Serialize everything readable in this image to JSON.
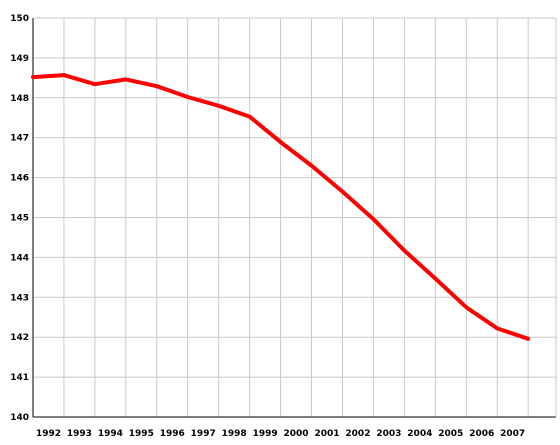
{
  "chart_data": {
    "type": "line",
    "title": "",
    "xlabel": "",
    "ylabel": "",
    "x": [
      1991,
      1992,
      1993,
      1994,
      1995,
      1996,
      1997,
      1998,
      1999,
      2000,
      2001,
      2002,
      2003,
      2004,
      2005,
      2006,
      2007
    ],
    "x_tick_labels": [
      "1992",
      "1993",
      "1994",
      "1995",
      "1996",
      "1997",
      "1998",
      "1999",
      "2000",
      "2001",
      "2002",
      "2003",
      "2004",
      "2005",
      "2006",
      "2007"
    ],
    "series": [
      {
        "color": "#ff0000",
        "values": [
          148.52,
          148.57,
          148.34,
          148.46,
          148.29,
          148.02,
          147.8,
          147.53,
          146.89,
          146.3,
          145.65,
          144.96,
          144.17,
          143.47,
          142.75,
          142.22,
          141.96
        ]
      }
    ],
    "xlim": [
      1991,
      2007.9
    ],
    "ylim": [
      140,
      150
    ],
    "y_ticks": [
      140,
      141,
      142,
      143,
      144,
      145,
      146,
      147,
      148,
      149,
      150
    ],
    "grid": true,
    "legend": "none"
  }
}
